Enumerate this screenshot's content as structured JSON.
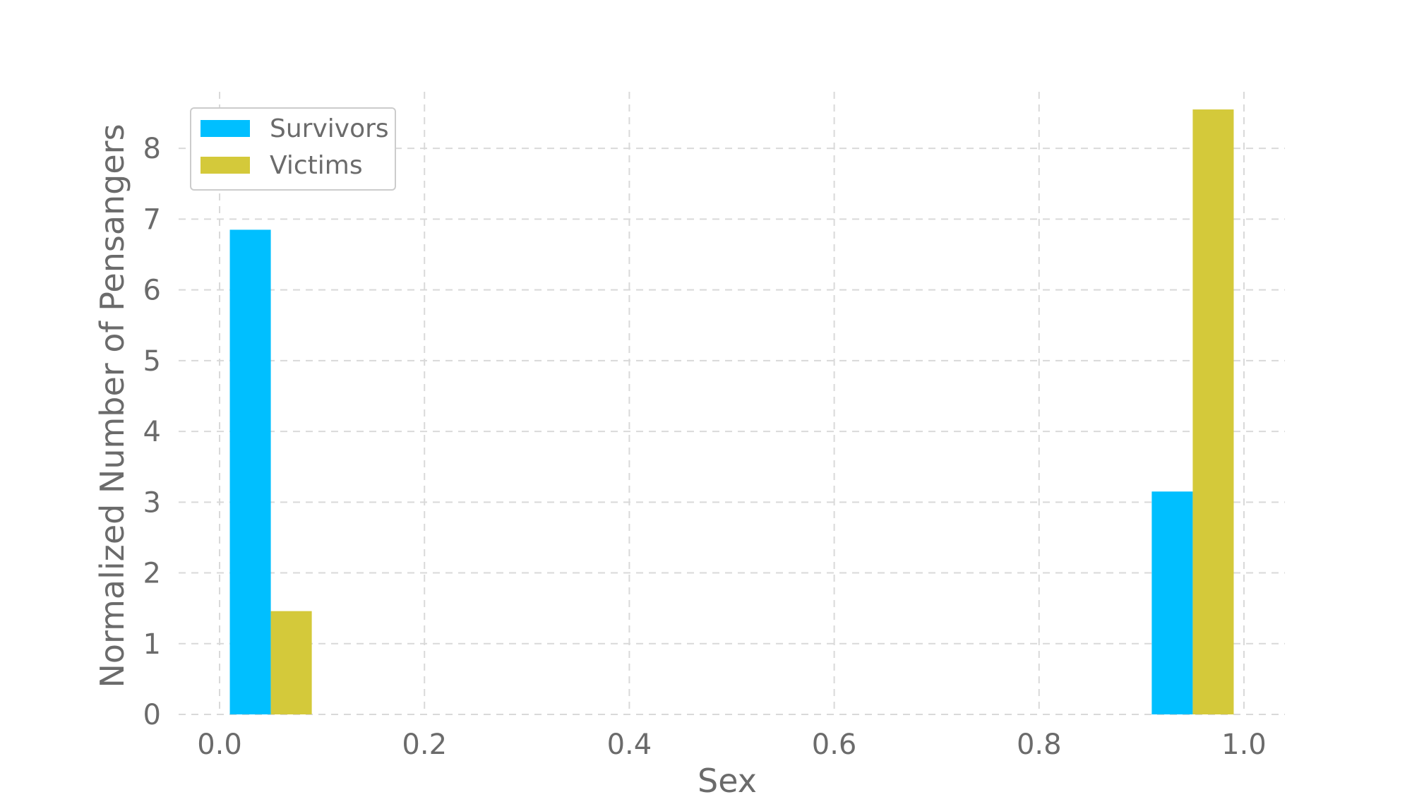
{
  "chart_data": {
    "type": "bar",
    "title": "",
    "xlabel": "Sex",
    "ylabel": "Normalized Number of Pensangers",
    "xlim": [
      -0.04,
      1.04
    ],
    "ylim": [
      0,
      8.8
    ],
    "xticks": [
      0.0,
      0.2,
      0.4,
      0.6,
      0.8,
      1.0
    ],
    "xtick_labels": [
      "0.0",
      "0.2",
      "0.4",
      "0.6",
      "0.8",
      "1.0"
    ],
    "yticks": [
      0,
      1,
      2,
      3,
      4,
      5,
      6,
      7,
      8
    ],
    "ytick_labels": [
      "0",
      "1",
      "2",
      "3",
      "4",
      "5",
      "6",
      "7",
      "8"
    ],
    "grid": true,
    "legend_position": "top-left",
    "series": [
      {
        "name": "Survivors",
        "color": "#00bfff",
        "bars": [
          {
            "x0": 0.01,
            "x1": 0.05,
            "value": 6.85
          },
          {
            "x0": 0.91,
            "x1": 0.95,
            "value": 3.15
          }
        ]
      },
      {
        "name": "Victims",
        "color": "#d4c93a",
        "bars": [
          {
            "x0": 0.05,
            "x1": 0.09,
            "value": 1.46
          },
          {
            "x0": 0.95,
            "x1": 0.99,
            "value": 8.55
          }
        ]
      }
    ]
  }
}
